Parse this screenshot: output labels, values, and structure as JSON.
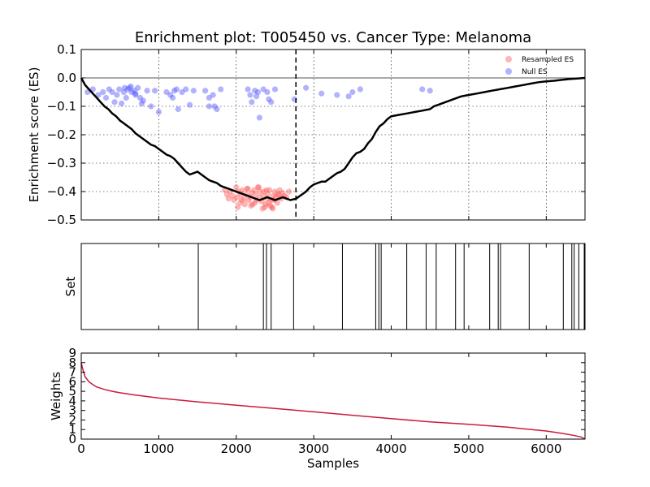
{
  "chart_data": [
    {
      "panel": "enrichment",
      "type": "scatter+line",
      "title": "Enrichment plot: T005450 vs. Cancer Type: Melanoma",
      "ylabel": "Enrichment score (ES)",
      "xlim": [
        0,
        6500
      ],
      "ylim": [
        -0.5,
        0.1
      ],
      "yticks": [
        0.1,
        0.0,
        -0.1,
        -0.2,
        -0.3,
        -0.4,
        -0.5
      ],
      "ytick_labels": [
        "0.1",
        "0.0",
        "−0.1",
        "−0.2",
        "−0.3",
        "−0.4",
        "−0.5"
      ],
      "grid": true,
      "zero_line": 0,
      "vline_x": 2770,
      "legend_position": "top-right",
      "legend": [
        "Resampled ES",
        "Null ES"
      ],
      "colors": {
        "resampled": "#ff5a5a",
        "null": "#5555ff",
        "es_line": "#000000"
      },
      "es_curve": {
        "x": [
          0,
          50,
          100,
          150,
          200,
          250,
          300,
          350,
          400,
          450,
          500,
          550,
          600,
          650,
          700,
          750,
          800,
          850,
          900,
          950,
          1000,
          1050,
          1100,
          1150,
          1200,
          1250,
          1300,
          1350,
          1400,
          1450,
          1500,
          1550,
          1600,
          1650,
          1700,
          1750,
          1800,
          1850,
          1900,
          1950,
          2000,
          2050,
          2100,
          2150,
          2200,
          2250,
          2300,
          2350,
          2400,
          2450,
          2500,
          2550,
          2600,
          2650,
          2700,
          2770,
          2850,
          2900,
          2950,
          3000,
          3050,
          3100,
          3150,
          3200,
          3250,
          3300,
          3350,
          3400,
          3450,
          3500,
          3550,
          3600,
          3650,
          3700,
          3750,
          3800,
          3850,
          3900,
          3950,
          4000,
          4100,
          4200,
          4300,
          4400,
          4500,
          4550,
          4600,
          4700,
          4800,
          4900,
          5000,
          5100,
          5200,
          5300,
          5400,
          5500,
          5600,
          5700,
          5800,
          5900,
          6000,
          6100,
          6200,
          6300,
          6400,
          6500
        ],
        "y": [
          0.0,
          -0.025,
          -0.04,
          -0.055,
          -0.07,
          -0.085,
          -0.1,
          -0.11,
          -0.125,
          -0.135,
          -0.15,
          -0.16,
          -0.17,
          -0.18,
          -0.195,
          -0.205,
          -0.215,
          -0.225,
          -0.235,
          -0.24,
          -0.25,
          -0.26,
          -0.27,
          -0.275,
          -0.285,
          -0.3,
          -0.315,
          -0.33,
          -0.34,
          -0.335,
          -0.33,
          -0.34,
          -0.35,
          -0.36,
          -0.365,
          -0.37,
          -0.38,
          -0.385,
          -0.39,
          -0.395,
          -0.4,
          -0.405,
          -0.41,
          -0.415,
          -0.42,
          -0.425,
          -0.43,
          -0.425,
          -0.42,
          -0.425,
          -0.43,
          -0.425,
          -0.42,
          -0.425,
          -0.43,
          -0.425,
          -0.41,
          -0.4,
          -0.385,
          -0.375,
          -0.37,
          -0.365,
          -0.365,
          -0.355,
          -0.345,
          -0.335,
          -0.33,
          -0.32,
          -0.3,
          -0.28,
          -0.265,
          -0.26,
          -0.25,
          -0.23,
          -0.215,
          -0.19,
          -0.17,
          -0.16,
          -0.145,
          -0.135,
          -0.13,
          -0.125,
          -0.12,
          -0.115,
          -0.11,
          -0.1,
          -0.095,
          -0.085,
          -0.075,
          -0.065,
          -0.06,
          -0.055,
          -0.05,
          -0.045,
          -0.04,
          -0.035,
          -0.03,
          -0.025,
          -0.02,
          -0.015,
          -0.012,
          -0.01,
          -0.007,
          -0.004,
          -0.002,
          0.0
        ]
      },
      "resampled_es": {
        "x": [
          1850,
          1880,
          1900,
          1920,
          1950,
          1970,
          2000,
          2010,
          2030,
          2050,
          2060,
          2080,
          2100,
          2110,
          2130,
          2150,
          2160,
          2180,
          2200,
          2210,
          2230,
          2250,
          2260,
          2280,
          2300,
          2310,
          2330,
          2350,
          2360,
          2380,
          2400,
          2410,
          2430,
          2450,
          2460,
          2480,
          2500,
          2510,
          2530,
          2550,
          2560,
          2580,
          2600,
          2620,
          2650,
          2680,
          2020,
          2070,
          2140,
          2190,
          2240,
          2290,
          2340,
          2390,
          2440,
          2490,
          2540,
          2370,
          2420,
          2470
        ],
        "y": [
          -0.395,
          -0.41,
          -0.425,
          -0.4,
          -0.415,
          -0.43,
          -0.385,
          -0.42,
          -0.4,
          -0.44,
          -0.41,
          -0.395,
          -0.425,
          -0.445,
          -0.41,
          -0.39,
          -0.43,
          -0.42,
          -0.405,
          -0.445,
          -0.395,
          -0.41,
          -0.43,
          -0.385,
          -0.42,
          -0.4,
          -0.435,
          -0.415,
          -0.4,
          -0.445,
          -0.425,
          -0.41,
          -0.395,
          -0.43,
          -0.455,
          -0.415,
          -0.4,
          -0.42,
          -0.44,
          -0.41,
          -0.395,
          -0.425,
          -0.405,
          -0.415,
          -0.42,
          -0.4,
          -0.455,
          -0.43,
          -0.39,
          -0.45,
          -0.44,
          -0.385,
          -0.46,
          -0.395,
          -0.45,
          -0.43,
          -0.41,
          -0.455,
          -0.44,
          -0.46
        ]
      },
      "null_es": {
        "x": [
          80,
          150,
          220,
          280,
          320,
          360,
          400,
          430,
          460,
          490,
          520,
          550,
          580,
          600,
          620,
          650,
          680,
          700,
          730,
          760,
          800,
          850,
          900,
          950,
          1000,
          1100,
          1150,
          1200,
          1250,
          1300,
          1350,
          1400,
          1450,
          1600,
          1650,
          1700,
          1720,
          1750,
          1800,
          2150,
          2180,
          2200,
          2240,
          2280,
          2300,
          2350,
          2400,
          2420,
          2450,
          2500,
          2750,
          2900,
          3100,
          3300,
          3450,
          3500,
          3600,
          4400,
          4500,
          560,
          640,
          700,
          780,
          1180,
          1230,
          1650,
          2260
        ],
        "y": [
          -0.05,
          -0.04,
          -0.06,
          -0.05,
          -0.07,
          -0.04,
          -0.05,
          -0.085,
          -0.06,
          -0.04,
          -0.09,
          -0.05,
          -0.07,
          -0.04,
          -0.035,
          -0.05,
          -0.045,
          -0.06,
          -0.035,
          -0.07,
          -0.08,
          -0.045,
          -0.1,
          -0.045,
          -0.12,
          -0.05,
          -0.06,
          -0.045,
          -0.11,
          -0.05,
          -0.04,
          -0.095,
          -0.045,
          -0.045,
          -0.07,
          -0.06,
          -0.1,
          -0.11,
          -0.04,
          -0.04,
          -0.06,
          -0.085,
          -0.045,
          -0.05,
          -0.14,
          -0.04,
          -0.05,
          -0.075,
          -0.085,
          -0.04,
          -0.075,
          -0.035,
          -0.055,
          -0.06,
          -0.065,
          -0.05,
          -0.04,
          -0.04,
          -0.045,
          -0.035,
          -0.03,
          -0.055,
          -0.09,
          -0.07,
          -0.04,
          -0.1,
          -0.065
        ]
      }
    },
    {
      "panel": "set",
      "type": "rug",
      "ylabel": "Set",
      "xlim": [
        0,
        6500
      ],
      "hits": [
        1510,
        2350,
        2390,
        2450,
        2740,
        3370,
        3800,
        3840,
        3870,
        4200,
        4450,
        4580,
        4830,
        4940,
        5270,
        5380,
        5410,
        5780,
        6220,
        6330,
        6360,
        6420,
        6490
      ]
    },
    {
      "panel": "weights",
      "type": "line",
      "xlabel": "Samples",
      "ylabel": "Weights",
      "xlim": [
        0,
        6500
      ],
      "ylim": [
        0,
        9
      ],
      "xticks": [
        0,
        1000,
        2000,
        3000,
        4000,
        5000,
        6000
      ],
      "xtick_labels": [
        "0",
        "1000",
        "2000",
        "3000",
        "4000",
        "5000",
        "6000"
      ],
      "yticks": [
        0,
        1,
        2,
        3,
        4,
        5,
        6,
        7,
        8,
        9
      ],
      "ytick_labels": [
        "0",
        "1",
        "2",
        "3",
        "4",
        "5",
        "6",
        "7",
        "8",
        "9"
      ],
      "color": "#cc1a3a",
      "x": [
        0,
        20,
        50,
        100,
        150,
        200,
        300,
        400,
        500,
        700,
        1000,
        1500,
        2000,
        2500,
        3000,
        3500,
        4000,
        4500,
        5000,
        5500,
        6000,
        6200,
        6350,
        6450,
        6500
      ],
      "y": [
        8.0,
        7.3,
        6.5,
        6.0,
        5.7,
        5.45,
        5.2,
        5.0,
        4.85,
        4.6,
        4.3,
        3.9,
        3.55,
        3.2,
        2.85,
        2.5,
        2.15,
        1.8,
        1.55,
        1.25,
        0.85,
        0.6,
        0.4,
        0.22,
        0.0
      ]
    }
  ]
}
